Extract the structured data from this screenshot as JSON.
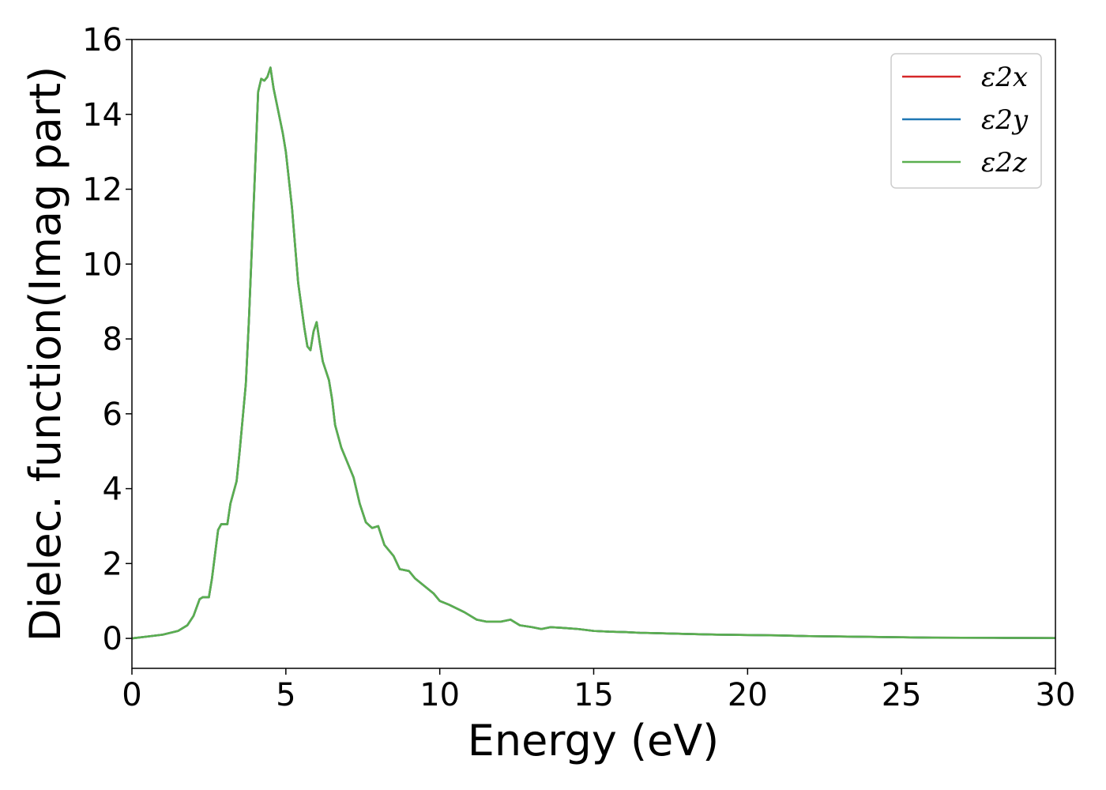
{
  "chart_data": {
    "type": "line",
    "xlabel": "Energy (eV)",
    "ylabel": "Dielec. function(Imag part)",
    "xlim": [
      0,
      30
    ],
    "ylim": [
      -0.8,
      16
    ],
    "xticks": [
      0,
      5,
      10,
      15,
      20,
      25,
      30
    ],
    "yticks": [
      0,
      2,
      4,
      6,
      8,
      10,
      12,
      14,
      16
    ],
    "grid": false,
    "legend_position": "top-right",
    "x": [
      0,
      0.5,
      1.0,
      1.5,
      1.8,
      2.0,
      2.2,
      2.3,
      2.5,
      2.6,
      2.8,
      2.9,
      3.1,
      3.2,
      3.4,
      3.5,
      3.7,
      3.8,
      3.9,
      4.0,
      4.1,
      4.2,
      4.3,
      4.4,
      4.5,
      4.6,
      4.7,
      4.8,
      4.9,
      5.0,
      5.2,
      5.4,
      5.6,
      5.7,
      5.8,
      5.9,
      6.0,
      6.1,
      6.2,
      6.4,
      6.5,
      6.6,
      6.8,
      7.0,
      7.2,
      7.4,
      7.6,
      7.8,
      8.0,
      8.2,
      8.5,
      8.7,
      9.0,
      9.2,
      9.5,
      9.8,
      10.0,
      10.3,
      10.8,
      11.2,
      11.5,
      12.0,
      12.3,
      12.6,
      13.0,
      13.3,
      13.6,
      14.0,
      14.5,
      15.0,
      15.5,
      16.0,
      16.5,
      17.0,
      17.5,
      18.0,
      19.0,
      20.0,
      21.0,
      22.0,
      23.0,
      24.0,
      25.0,
      26.0,
      28.0,
      30.0
    ],
    "series": [
      {
        "name": "ε2x",
        "color": "#d62728",
        "values": [
          0.0,
          0.05,
          0.1,
          0.2,
          0.35,
          0.6,
          1.05,
          1.1,
          1.1,
          1.6,
          2.9,
          3.05,
          3.05,
          3.6,
          4.2,
          5.0,
          6.8,
          8.5,
          10.5,
          12.5,
          14.6,
          14.95,
          14.9,
          15.0,
          15.25,
          14.7,
          14.3,
          13.9,
          13.5,
          13.0,
          11.5,
          9.5,
          8.3,
          7.8,
          7.7,
          8.2,
          8.45,
          7.9,
          7.4,
          6.9,
          6.4,
          5.7,
          5.1,
          4.7,
          4.3,
          3.6,
          3.1,
          2.95,
          3.0,
          2.5,
          2.2,
          1.85,
          1.8,
          1.6,
          1.4,
          1.2,
          1.0,
          0.9,
          0.7,
          0.5,
          0.45,
          0.45,
          0.5,
          0.35,
          0.3,
          0.25,
          0.3,
          0.28,
          0.25,
          0.2,
          0.18,
          0.17,
          0.15,
          0.14,
          0.13,
          0.12,
          0.1,
          0.09,
          0.08,
          0.06,
          0.05,
          0.04,
          0.03,
          0.02,
          0.015,
          0.01
        ]
      },
      {
        "name": "ε2y",
        "color": "#1f77b4",
        "values": [
          0.0,
          0.05,
          0.1,
          0.2,
          0.35,
          0.6,
          1.05,
          1.1,
          1.1,
          1.6,
          2.9,
          3.05,
          3.05,
          3.6,
          4.2,
          5.0,
          6.8,
          8.5,
          10.5,
          12.5,
          14.6,
          14.95,
          14.9,
          15.0,
          15.25,
          14.7,
          14.3,
          13.9,
          13.5,
          13.0,
          11.5,
          9.5,
          8.3,
          7.8,
          7.7,
          8.2,
          8.45,
          7.9,
          7.4,
          6.9,
          6.4,
          5.7,
          5.1,
          4.7,
          4.3,
          3.6,
          3.1,
          2.95,
          3.0,
          2.5,
          2.2,
          1.85,
          1.8,
          1.6,
          1.4,
          1.2,
          1.0,
          0.9,
          0.7,
          0.5,
          0.45,
          0.45,
          0.5,
          0.35,
          0.3,
          0.25,
          0.3,
          0.28,
          0.25,
          0.2,
          0.18,
          0.17,
          0.15,
          0.14,
          0.13,
          0.12,
          0.1,
          0.09,
          0.08,
          0.06,
          0.05,
          0.04,
          0.03,
          0.02,
          0.015,
          0.01
        ]
      },
      {
        "name": "ε2z",
        "color": "#5aaf4f",
        "values": [
          0.0,
          0.05,
          0.1,
          0.2,
          0.35,
          0.6,
          1.05,
          1.1,
          1.1,
          1.6,
          2.9,
          3.05,
          3.05,
          3.6,
          4.2,
          5.0,
          6.8,
          8.5,
          10.5,
          12.5,
          14.6,
          14.95,
          14.9,
          15.0,
          15.25,
          14.7,
          14.3,
          13.9,
          13.5,
          13.0,
          11.5,
          9.5,
          8.3,
          7.8,
          7.7,
          8.2,
          8.45,
          7.9,
          7.4,
          6.9,
          6.4,
          5.7,
          5.1,
          4.7,
          4.3,
          3.6,
          3.1,
          2.95,
          3.0,
          2.5,
          2.2,
          1.85,
          1.8,
          1.6,
          1.4,
          1.2,
          1.0,
          0.9,
          0.7,
          0.5,
          0.45,
          0.45,
          0.5,
          0.35,
          0.3,
          0.25,
          0.3,
          0.28,
          0.25,
          0.2,
          0.18,
          0.17,
          0.15,
          0.14,
          0.13,
          0.12,
          0.1,
          0.09,
          0.08,
          0.06,
          0.05,
          0.04,
          0.03,
          0.02,
          0.015,
          0.01
        ]
      }
    ]
  }
}
